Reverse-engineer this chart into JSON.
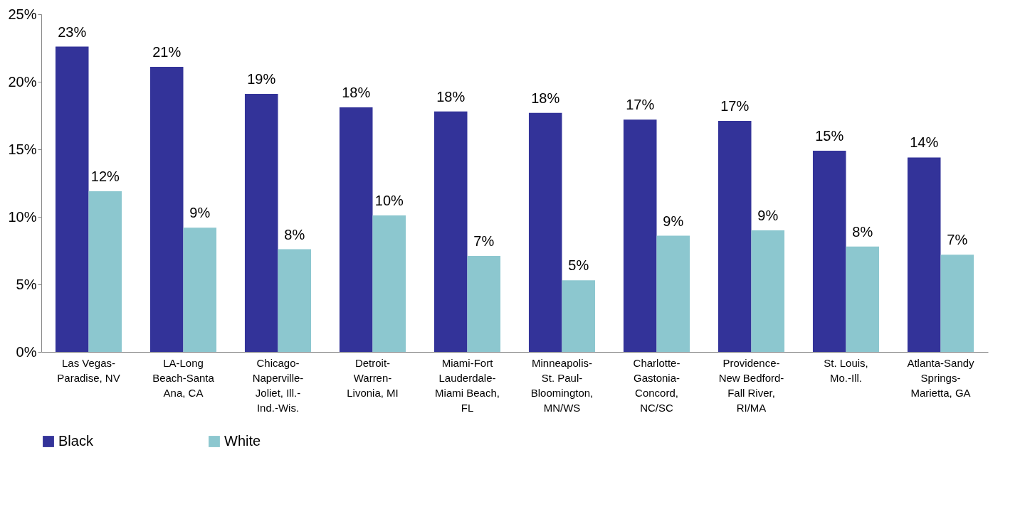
{
  "chart_data": {
    "type": "bar",
    "categories": [
      "Las Vegas-Paradise, NV",
      "LA-Long Beach-Santa Ana, CA",
      "Chicago-Naperville-Joliet, Ill.-Ind.-Wis.",
      "Detroit-Warren-Livonia, MI",
      "Miami-Fort Lauderdale-Miami Beach, FL",
      "Minneapolis-St. Paul-Bloomington, MN/WS",
      "Charlotte-Gastonia-Concord, NC/SC",
      "Providence-New Bedford-Fall River, RI/MA",
      "St. Louis, Mo.-Ill.",
      "Atlanta-Sandy Springs-Marietta, GA"
    ],
    "series": [
      {
        "name": "Black",
        "color": "#333399",
        "values": [
          22.6,
          21.1,
          19.1,
          18.1,
          17.8,
          17.7,
          17.2,
          17.1,
          14.9,
          14.4
        ],
        "value_labels": [
          "23%",
          "21%",
          "19%",
          "18%",
          "18%",
          "18%",
          "17%",
          "17%",
          "15%",
          "14%"
        ]
      },
      {
        "name": "White",
        "color": "#8cc7cf",
        "values": [
          11.9,
          9.2,
          7.6,
          10.1,
          7.1,
          5.3,
          8.6,
          9.0,
          7.8,
          7.2
        ],
        "value_labels": [
          "12%",
          "9%",
          "8%",
          "10%",
          "7%",
          "5%",
          "9%",
          "9%",
          "8%",
          "7%"
        ]
      }
    ],
    "ylim": [
      0,
      25
    ],
    "yticks": [
      {
        "value": 0,
        "label": "0%"
      },
      {
        "value": 5,
        "label": "5%"
      },
      {
        "value": 10,
        "label": "10%"
      },
      {
        "value": 15,
        "label": "15%"
      },
      {
        "value": 20,
        "label": "20%"
      },
      {
        "value": 25,
        "label": "25%"
      }
    ],
    "grid": false,
    "legend": "bottom"
  }
}
